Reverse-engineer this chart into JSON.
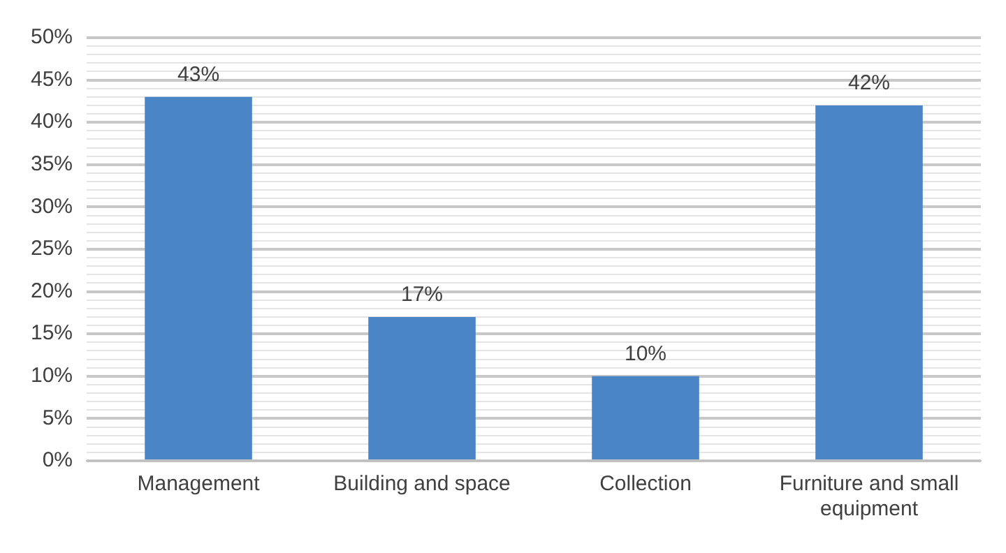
{
  "chart_data": {
    "type": "bar",
    "categories": [
      "Management",
      "Building and space",
      "Collection",
      "Furniture and small equipment"
    ],
    "values": [
      43,
      17,
      10,
      42
    ],
    "color": "#4a86c5",
    "value_labels": [
      "43%",
      "17%",
      "10%",
      "42%"
    ],
    "ylim": [
      0,
      50
    ],
    "yticks": [
      {
        "value": 0,
        "label": "0%"
      },
      {
        "value": 1,
        "label": null
      },
      {
        "value": 2,
        "label": null
      },
      {
        "value": 3,
        "label": null
      },
      {
        "value": 4,
        "label": null
      },
      {
        "value": 5,
        "label": "5%"
      },
      {
        "value": 6,
        "label": null
      },
      {
        "value": 7,
        "label": null
      },
      {
        "value": 8,
        "label": null
      },
      {
        "value": 9,
        "label": null
      },
      {
        "value": 10,
        "label": "10%"
      },
      {
        "value": 11,
        "label": null
      },
      {
        "value": 12,
        "label": null
      },
      {
        "value": 13,
        "label": null
      },
      {
        "value": 14,
        "label": null
      },
      {
        "value": 15,
        "label": "15%"
      },
      {
        "value": 16,
        "label": null
      },
      {
        "value": 17,
        "label": null
      },
      {
        "value": 18,
        "label": null
      },
      {
        "value": 19,
        "label": null
      },
      {
        "value": 20,
        "label": "20%"
      },
      {
        "value": 21,
        "label": null
      },
      {
        "value": 22,
        "label": null
      },
      {
        "value": 23,
        "label": null
      },
      {
        "value": 24,
        "label": null
      },
      {
        "value": 25,
        "label": "25%"
      },
      {
        "value": 26,
        "label": null
      },
      {
        "value": 27,
        "label": null
      },
      {
        "value": 28,
        "label": null
      },
      {
        "value": 29,
        "label": null
      },
      {
        "value": 30,
        "label": "30%"
      },
      {
        "value": 31,
        "label": null
      },
      {
        "value": 32,
        "label": null
      },
      {
        "value": 33,
        "label": null
      },
      {
        "value": 34,
        "label": null
      },
      {
        "value": 35,
        "label": "35%"
      },
      {
        "value": 36,
        "label": null
      },
      {
        "value": 37,
        "label": null
      },
      {
        "value": 38,
        "label": null
      },
      {
        "value": 39,
        "label": null
      },
      {
        "value": 40,
        "label": "40%"
      },
      {
        "value": 41,
        "label": null
      },
      {
        "value": 42,
        "label": null
      },
      {
        "value": 43,
        "label": null
      },
      {
        "value": 44,
        "label": null
      },
      {
        "value": 45,
        "label": "45%"
      },
      {
        "value": 46,
        "label": null
      },
      {
        "value": 47,
        "label": null
      },
      {
        "value": 48,
        "label": null
      },
      {
        "value": 49,
        "label": null
      },
      {
        "value": 50,
        "label": "50%"
      }
    ],
    "grid": "y",
    "legend": false
  }
}
